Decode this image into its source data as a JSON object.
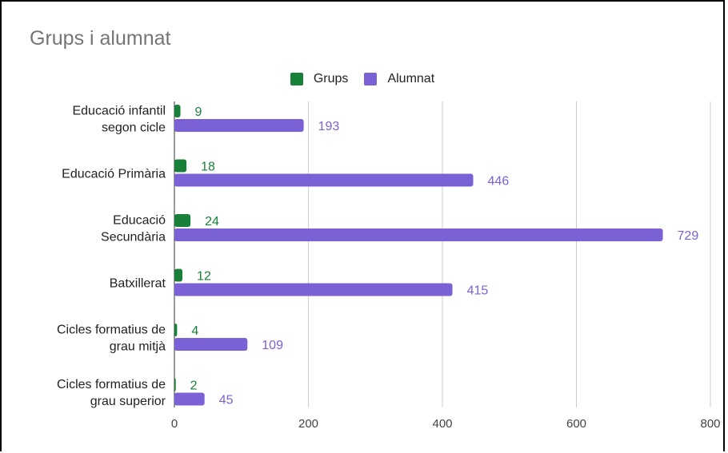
{
  "chart_data": {
    "type": "bar",
    "orientation": "horizontal",
    "title": "Grups i alumnat",
    "categories": [
      [
        "Educació infantil",
        "segon cicle"
      ],
      [
        "Educació Primària"
      ],
      [
        "Educació",
        "Secundària"
      ],
      [
        "Batxillerat"
      ],
      [
        "Cicles formatius de",
        "grau mitjà"
      ],
      [
        "Cicles formatius de",
        "grau superior"
      ]
    ],
    "series": [
      {
        "name": "Grups",
        "color": "#188038",
        "values": [
          9,
          18,
          24,
          12,
          4,
          2
        ]
      },
      {
        "name": "Alumnat",
        "color": "#7b61d6",
        "values": [
          193,
          446,
          729,
          415,
          109,
          45
        ]
      }
    ],
    "xlim": [
      0,
      800
    ],
    "xticks": [
      "0",
      "200",
      "400",
      "600",
      "800"
    ],
    "grid": true,
    "legend_position": "top",
    "data_labels": true
  }
}
